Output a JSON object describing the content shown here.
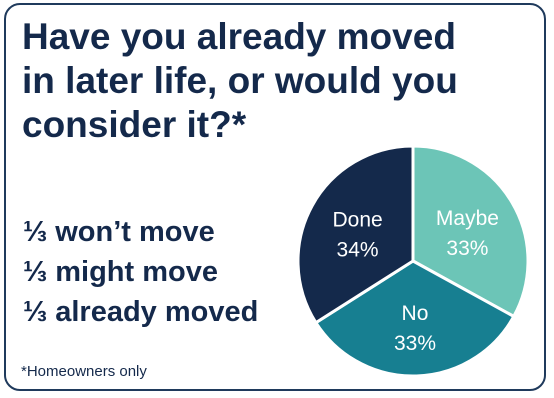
{
  "title": "Have you already moved in later life, or would you consider it?*",
  "summary": [
    "⅓ won’t move",
    "⅓ might move",
    "⅓ already moved"
  ],
  "footnote": "*Homeowners only",
  "colors": {
    "border": "#1f3a5c",
    "text": "#14294b"
  },
  "chart_data": {
    "type": "pie",
    "slices": [
      {
        "label": "Maybe",
        "value": 33,
        "display": "33%",
        "color": "#6cc5b7"
      },
      {
        "label": "No",
        "value": 33,
        "display": "33%",
        "color": "#177f91"
      },
      {
        "label": "Done",
        "value": 34,
        "display": "34%",
        "color": "#14294b"
      }
    ],
    "start": "12 o'clock",
    "direction": "clockwise"
  }
}
